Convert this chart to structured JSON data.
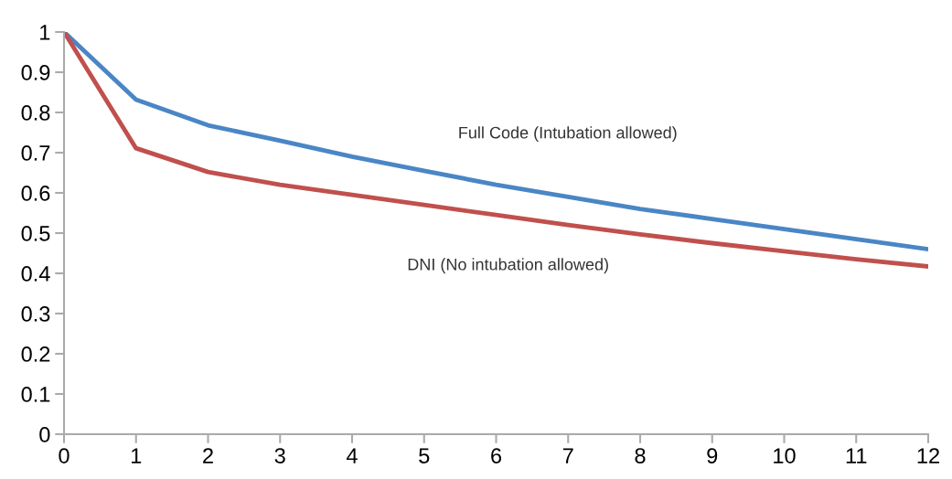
{
  "chart_data": {
    "type": "line",
    "x": [
      0,
      1,
      2,
      3,
      4,
      5,
      6,
      7,
      8,
      9,
      10,
      11,
      12
    ],
    "series": [
      {
        "name": "Full Code (Intubation allowed)",
        "color": "#4a86c5",
        "values": [
          1,
          0.832,
          0.768,
          0.73,
          0.69,
          0.655,
          0.62,
          0.59,
          0.56,
          0.535,
          0.51,
          0.485,
          0.46
        ]
      },
      {
        "name": "DNI (No intubation allowed)",
        "color": "#c0504d",
        "values": [
          1,
          0.711,
          0.652,
          0.62,
          0.595,
          0.57,
          0.545,
          0.52,
          0.497,
          0.475,
          0.455,
          0.435,
          0.417
        ]
      }
    ],
    "xlim": [
      0,
      12
    ],
    "ylim": [
      0,
      1
    ],
    "xticks": [
      0,
      1,
      2,
      3,
      4,
      5,
      6,
      7,
      8,
      9,
      10,
      11,
      12
    ],
    "yticks": [
      0,
      0.1,
      0.2,
      0.3,
      0.4,
      0.5,
      0.6,
      0.7,
      0.8,
      0.9,
      1
    ],
    "grid": false,
    "legend": false,
    "marker": "none",
    "line_style": "solid"
  }
}
